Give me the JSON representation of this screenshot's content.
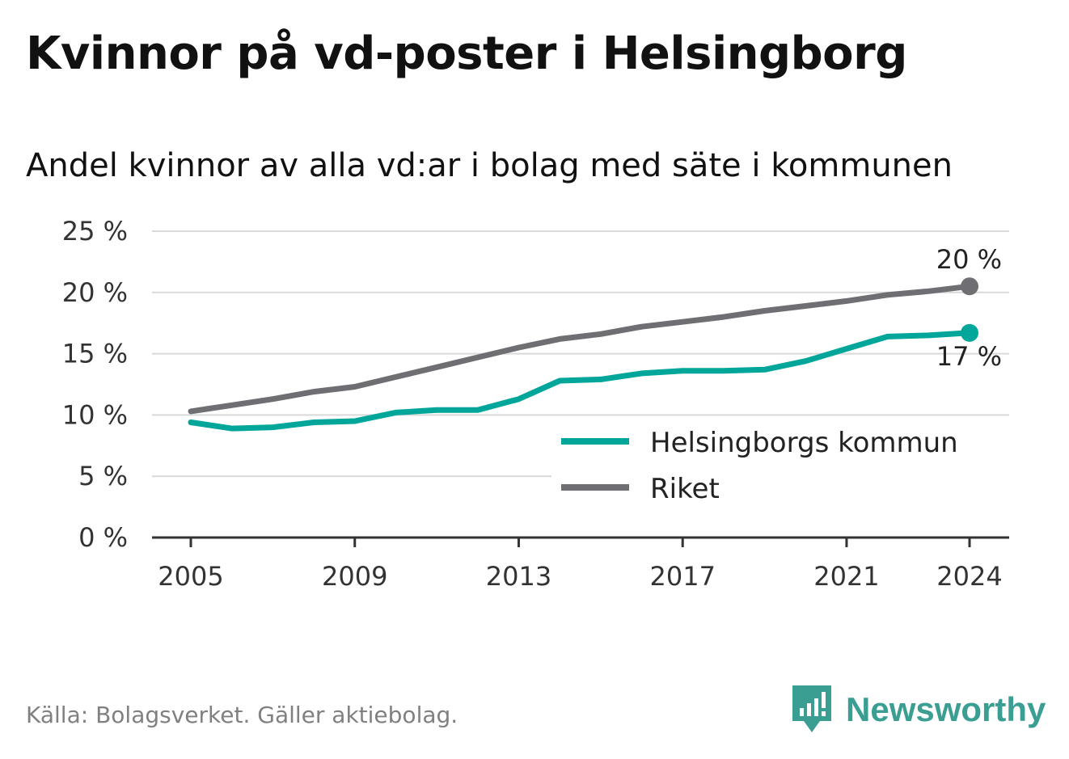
{
  "header": {
    "title": "Kvinnor på vd-poster i Helsingborg",
    "subtitle": "Andel kvinnor av alla vd:ar i bolag med säte i kommunen"
  },
  "footer": {
    "source": "Källa: Bolagsverket. Gäller aktiebolag.",
    "brand": "Newsworthy"
  },
  "colors": {
    "helsingborg": "#00a69a",
    "riket": "#6f6e73",
    "brand": "#3a9e93",
    "grid": "#d9d9d9",
    "axis": "#333333"
  },
  "chart_data": {
    "type": "line",
    "x": [
      2005,
      2006,
      2007,
      2008,
      2009,
      2010,
      2011,
      2012,
      2013,
      2014,
      2015,
      2016,
      2017,
      2018,
      2019,
      2020,
      2021,
      2022,
      2023,
      2024
    ],
    "series": [
      {
        "name": "Helsingborgs kommun",
        "color": "#00a69a",
        "values": [
          9.4,
          8.9,
          9.0,
          9.4,
          9.5,
          10.2,
          10.4,
          10.4,
          11.3,
          12.8,
          12.9,
          13.4,
          13.6,
          13.6,
          13.7,
          14.4,
          15.4,
          16.4,
          16.5,
          16.7
        ],
        "end_label": "17 %"
      },
      {
        "name": "Riket",
        "color": "#6f6e73",
        "values": [
          10.3,
          10.8,
          11.3,
          11.9,
          12.3,
          13.1,
          13.9,
          14.7,
          15.5,
          16.2,
          16.6,
          17.2,
          17.6,
          18.0,
          18.5,
          18.9,
          19.3,
          19.8,
          20.1,
          20.5
        ],
        "end_label": "20 %"
      }
    ],
    "y_ticks": [
      0,
      5,
      10,
      15,
      20,
      25
    ],
    "y_tick_labels": [
      "0 %",
      "5 %",
      "10 %",
      "15 %",
      "20 %",
      "25 %"
    ],
    "x_ticks": [
      2005,
      2009,
      2013,
      2017,
      2021,
      2024
    ],
    "x_tick_labels": [
      "2005",
      "2009",
      "2013",
      "2017",
      "2021",
      "2024"
    ],
    "xlim": [
      2005,
      2024
    ],
    "ylim": [
      0,
      25
    ],
    "grid": true,
    "legend_position": "bottom-right"
  }
}
